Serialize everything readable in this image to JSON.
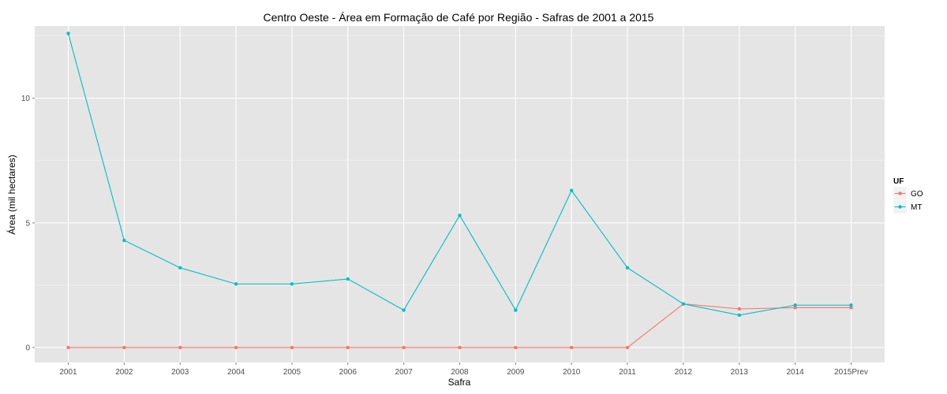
{
  "chart_data": {
    "type": "line",
    "title": "Centro Oeste  - Área em Formação de Café por Região - Safras de 2001 a 2015",
    "xlabel": "Safra",
    "ylabel": "Área (mil hectares)",
    "categories": [
      "2001",
      "2002",
      "2003",
      "2004",
      "2005",
      "2006",
      "2007",
      "2008",
      "2009",
      "2010",
      "2011",
      "2012",
      "2013",
      "2014",
      "2015Prev"
    ],
    "ylim": [
      -0.6,
      12.9
    ],
    "yticks": [
      0,
      5,
      10
    ],
    "grid": true,
    "legend": {
      "title": "UF",
      "position": "right"
    },
    "series": [
      {
        "name": "GO",
        "color": "#F8766D",
        "values": [
          0,
          0,
          0,
          0,
          0,
          0,
          0,
          0,
          0,
          0,
          0,
          1.75,
          1.55,
          1.6,
          1.6
        ]
      },
      {
        "name": "MT",
        "color": "#00BFC4",
        "values": [
          12.6,
          4.3,
          3.2,
          2.55,
          2.55,
          2.75,
          1.5,
          5.3,
          1.5,
          6.3,
          3.2,
          1.75,
          1.3,
          1.7,
          1.7
        ]
      }
    ]
  }
}
